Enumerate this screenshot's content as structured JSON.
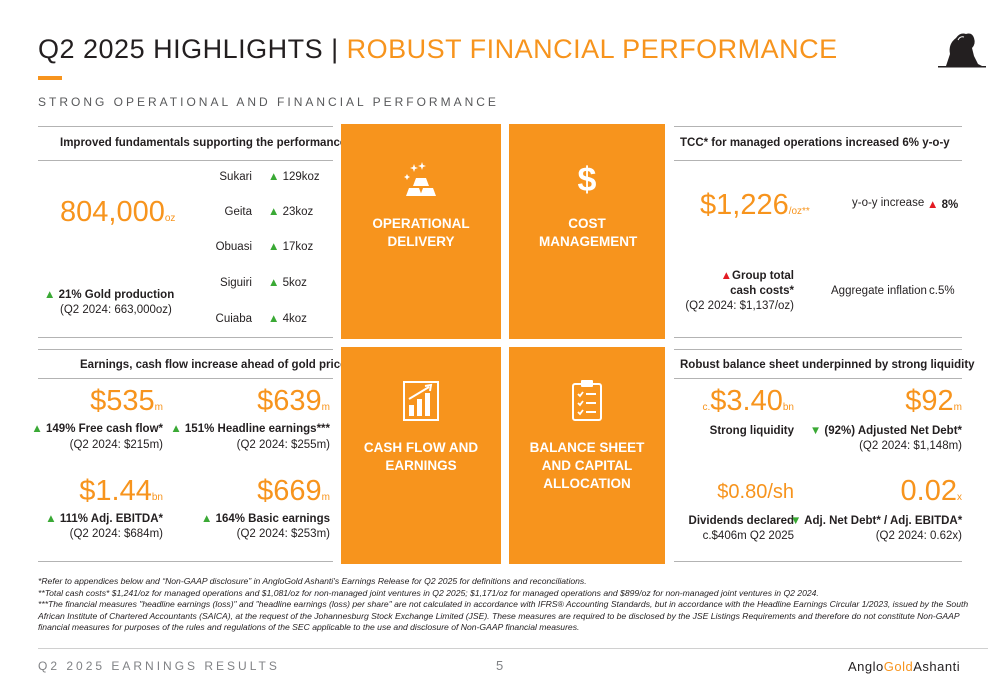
{
  "header": {
    "title_main": "Q2 2025 HIGHLIGHTS",
    "title_sep": "|",
    "title_sub": "ROBUST FINANCIAL PERFORMANCE",
    "subtitle": "STRONG OPERATIONAL AND FINANCIAL PERFORMANCE"
  },
  "tiles": {
    "operational": "OPERATIONAL DELIVERY",
    "cost": "COST MANAGEMENT",
    "cost_icon": "$",
    "cashflow": "CASH FLOW AND EARNINGS",
    "balance": "BALANCE SHEET AND CAPITAL ALLOCATION"
  },
  "production": {
    "heading": "Improved fundamentals supporting the performance",
    "big_value": "804,000",
    "big_unit": "oz",
    "change": "21% Gold production",
    "prior": "(Q2 2024: 663,000oz)",
    "mines": [
      {
        "name": "Sukari",
        "value": "129koz"
      },
      {
        "name": "Geita",
        "value": "23koz"
      },
      {
        "name": "Obuasi",
        "value": "17koz"
      },
      {
        "name": "Siguiri",
        "value": "5koz"
      },
      {
        "name": "Cuiaba",
        "value": "4koz"
      }
    ]
  },
  "tcc": {
    "heading": "TCC* for managed operations increased 6% y-o-y",
    "big_value": "$1,226",
    "big_unit": "/oz**",
    "yoy_label": "y-o-y increase",
    "yoy_value": "8%",
    "gtc_label_1": "Group total",
    "gtc_label_2": "cash costs*",
    "gtc_prior": "(Q2 2024: $1,137/oz)",
    "inflation_label": "Aggregate inflation",
    "inflation_value": "c.5%"
  },
  "earnings": {
    "heading": "Earnings, cash flow increase ahead of gold price",
    "items": [
      {
        "value": "$535",
        "unit": "m",
        "label": "149% Free cash flow*",
        "prior": "(Q2 2024: $215m)"
      },
      {
        "value": "$639",
        "unit": "m",
        "label": "151% Headline earnings***",
        "prior": "(Q2 2024: $255m)"
      },
      {
        "value": "$1.44",
        "unit": "bn",
        "label": "111% Adj. EBITDA*",
        "prior": "(Q2 2024: $684m)"
      },
      {
        "value": "$669",
        "unit": "m",
        "label": "164% Basic earnings",
        "prior": "(Q2 2024: $253m)"
      }
    ]
  },
  "balance": {
    "heading": "Robust balance sheet underpinned by strong liquidity",
    "liquidity_prefix": "c.",
    "liquidity_value": "$3.40",
    "liquidity_unit": "bn",
    "liquidity_label": "Strong liquidity",
    "debt_value": "$92",
    "debt_unit": "m",
    "debt_label": "(92%) Adjusted Net Debt*",
    "debt_prior": "(Q2 2024: $1,148m)",
    "dividend_value": "$0.80/sh",
    "dividend_label": "Dividends declared",
    "dividend_sub": "c.$406m Q2 2025",
    "ratio_value": "0.02",
    "ratio_unit": "x",
    "ratio_label": "Adj. Net Debt* / Adj. EBITDA*",
    "ratio_prior": "(Q2 2024: 0.62x)"
  },
  "footnotes": {
    "f1": "*Refer to appendices below and “Non-GAAP disclosure” in AngloGold Ashanti's Earnings Release for Q2 2025 for definitions and reconciliations.",
    "f2": "**Total cash costs* $1,241/oz for managed operations and $1,081/oz for non-managed joint ventures in Q2 2025; $1,171/oz for managed operations and $899/oz for non-managed joint ventures in Q2 2024.",
    "f3": "***The financial measures \"headline earnings (loss)\" and \"headline earnings (loss) per share\" are not calculated in accordance with IFRS® Accounting Standards, but in accordance with the Headline Earnings Circular 1/2023, issued by the South African Institute of Chartered Accountants (SAICA), at the request of the Johannesburg Stock Exchange Limited (JSE). These measures are required to be disclosed by the JSE Listings Requirements and therefore do not constitute Non-GAAP financial measures for purposes of the rules and regulations of the SEC applicable to the use and disclosure of Non-GAAP financial measures."
  },
  "footer": {
    "left": "Q2 2025 EARNINGS RESULTS",
    "page": "5",
    "brand_1": "Anglo",
    "brand_2": "Gold",
    "brand_3": "Ashanti"
  },
  "colors": {
    "accent": "#f7941d",
    "up": "#3aa935",
    "down": "#3aa935",
    "alert": "#e31b23"
  },
  "icons": [
    "gold-bars-icon",
    "bar-chart-icon",
    "clipboard-icon",
    "lion-logo-icon"
  ]
}
